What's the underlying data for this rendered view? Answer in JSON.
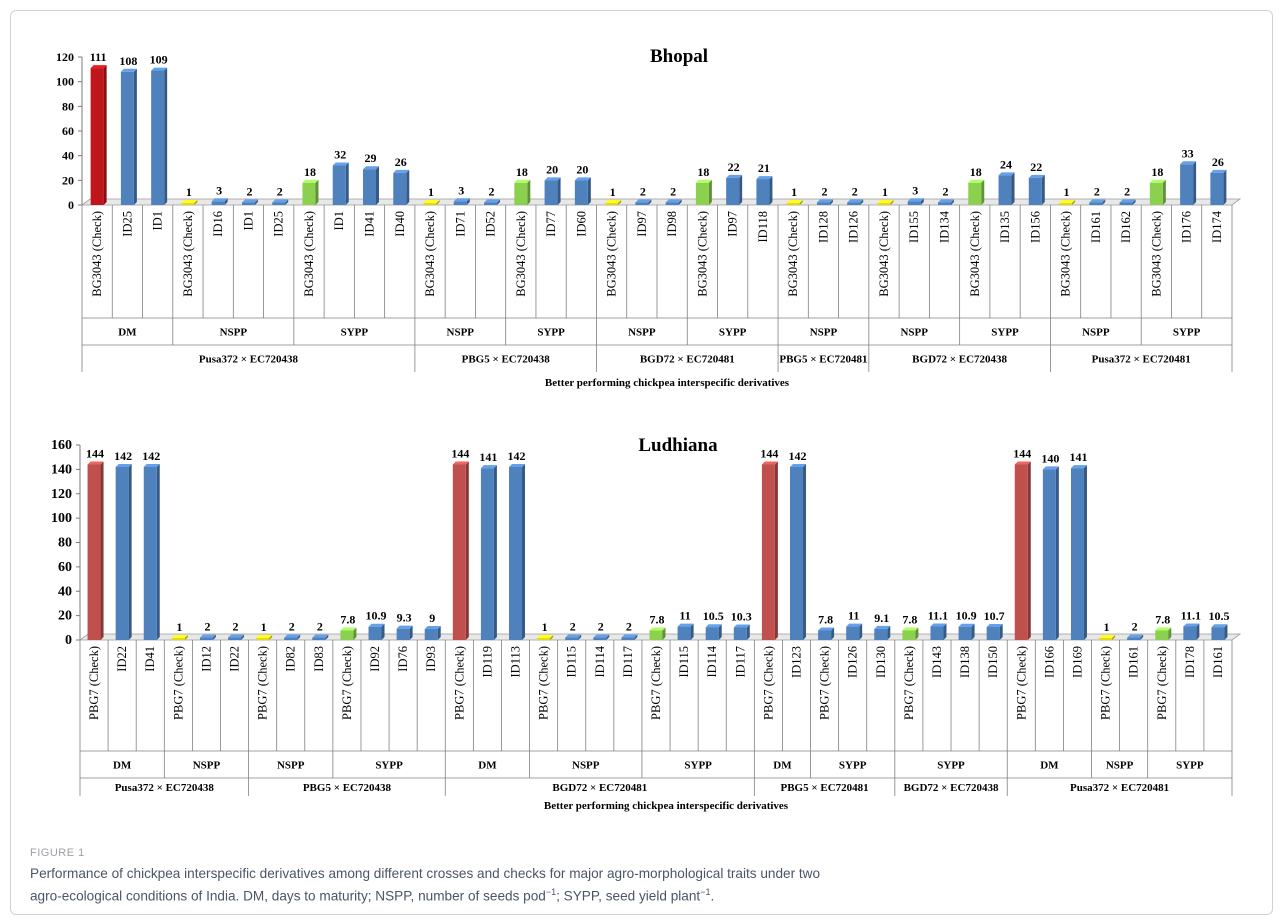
{
  "figure": {
    "label": "FIGURE 1",
    "caption_line1": "Performance of chickpea interspecific derivatives among different crosses and checks for major agro-morphological traits under two",
    "caption_line2": "agro-ecological conditions of India. DM, days to maturity; NSPP, number of seeds pod",
    "caption_sup1": "−1",
    "caption_mid": "; SYPP, seed yield plant",
    "caption_sup2": "−1",
    "caption_end": "."
  },
  "colors": {
    "check_dm": "#c0161b",
    "check_dm_ludhiana": "#c0504d",
    "check_nspp": "#e5d817",
    "check_sypp": "#8cd04f",
    "derivative": "#4f81bd"
  },
  "chart_data": [
    {
      "type": "bar",
      "title": "Bhopal",
      "xlabel": "Better performing chickpea interspecific derivatives",
      "ylabel": "",
      "ylim": [
        0,
        120
      ],
      "yticks": [
        0,
        20,
        40,
        60,
        80,
        100,
        120
      ],
      "grid": false,
      "legend": "none",
      "groups": [
        {
          "cross": "Pusa372 × EC720438",
          "subgroups": [
            {
              "trait": "DM",
              "bars": [
                {
                  "label": "BG3043 (Check)",
                  "value": 111,
                  "kind": "check_dm"
                },
                {
                  "label": "ID25",
                  "value": 108,
                  "kind": "derivative"
                },
                {
                  "label": "ID1",
                  "value": 109,
                  "kind": "derivative"
                }
              ]
            },
            {
              "trait": "NSPP",
              "bars": [
                {
                  "label": "BG3043 (Check)",
                  "value": 1,
                  "kind": "check_nspp"
                },
                {
                  "label": "ID16",
                  "value": 3,
                  "kind": "derivative"
                },
                {
                  "label": "ID1",
                  "value": 2,
                  "kind": "derivative"
                },
                {
                  "label": "ID25",
                  "value": 2,
                  "kind": "derivative"
                }
              ]
            },
            {
              "trait": "SYPP",
              "bars": [
                {
                  "label": "BG3043 (Check)",
                  "value": 18,
                  "kind": "check_sypp"
                },
                {
                  "label": "ID1",
                  "value": 32,
                  "kind": "derivative"
                },
                {
                  "label": "ID41",
                  "value": 29,
                  "kind": "derivative"
                },
                {
                  "label": "ID40",
                  "value": 26,
                  "kind": "derivative"
                }
              ]
            }
          ]
        },
        {
          "cross": "PBG5 × EC720438",
          "subgroups": [
            {
              "trait": "NSPP",
              "bars": [
                {
                  "label": "BG3043 (Check)",
                  "value": 1,
                  "kind": "check_nspp"
                },
                {
                  "label": "ID71",
                  "value": 3,
                  "kind": "derivative"
                },
                {
                  "label": "ID52",
                  "value": 2,
                  "kind": "derivative"
                }
              ]
            },
            {
              "trait": "SYPP",
              "bars": [
                {
                  "label": "BG3043 (Check)",
                  "value": 18,
                  "kind": "check_sypp"
                },
                {
                  "label": "ID77",
                  "value": 20,
                  "kind": "derivative"
                },
                {
                  "label": "ID60",
                  "value": 20,
                  "kind": "derivative"
                }
              ]
            }
          ]
        },
        {
          "cross": "BGD72 × EC720481",
          "subgroups": [
            {
              "trait": "NSPP",
              "bars": [
                {
                  "label": "BG3043 (Check)",
                  "value": 1,
                  "kind": "check_nspp"
                },
                {
                  "label": "ID97",
                  "value": 2,
                  "kind": "derivative"
                },
                {
                  "label": "ID98",
                  "value": 2,
                  "kind": "derivative"
                }
              ]
            },
            {
              "trait": "SYPP",
              "bars": [
                {
                  "label": "BG3043 (Check)",
                  "value": 18,
                  "kind": "check_sypp"
                },
                {
                  "label": "ID97",
                  "value": 22,
                  "kind": "derivative"
                },
                {
                  "label": "ID118",
                  "value": 21,
                  "kind": "derivative"
                }
              ]
            }
          ]
        },
        {
          "cross": "PBG5 × EC720481",
          "subgroups": [
            {
              "trait": "NSPP",
              "bars": [
                {
                  "label": "BG3043 (Check)",
                  "value": 1,
                  "kind": "check_nspp"
                },
                {
                  "label": "ID128",
                  "value": 2,
                  "kind": "derivative"
                },
                {
                  "label": "ID126",
                  "value": 2,
                  "kind": "derivative"
                }
              ]
            }
          ]
        },
        {
          "cross": "BGD72 × EC720438",
          "subgroups": [
            {
              "trait": "NSPP",
              "bars": [
                {
                  "label": "BG3043 (Check)",
                  "value": 1,
                  "kind": "check_nspp"
                },
                {
                  "label": "ID155",
                  "value": 3,
                  "kind": "derivative"
                },
                {
                  "label": "ID134",
                  "value": 2,
                  "kind": "derivative"
                }
              ]
            },
            {
              "trait": "SYPP",
              "bars": [
                {
                  "label": "BG3043 (Check)",
                  "value": 18,
                  "kind": "check_sypp"
                },
                {
                  "label": "ID135",
                  "value": 24,
                  "kind": "derivative"
                },
                {
                  "label": "ID156",
                  "value": 22,
                  "kind": "derivative"
                }
              ]
            }
          ]
        },
        {
          "cross": "Pusa372 × EC720481",
          "subgroups": [
            {
              "trait": "NSPP",
              "bars": [
                {
                  "label": "BG3043 (Check)",
                  "value": 1,
                  "kind": "check_nspp"
                },
                {
                  "label": "ID161",
                  "value": 2,
                  "kind": "derivative"
                },
                {
                  "label": "ID162",
                  "value": 2,
                  "kind": "derivative"
                }
              ]
            },
            {
              "trait": "SYPP",
              "bars": [
                {
                  "label": "BG3043 (Check)",
                  "value": 18,
                  "kind": "check_sypp"
                },
                {
                  "label": "ID176",
                  "value": 33,
                  "kind": "derivative"
                },
                {
                  "label": "ID174",
                  "value": 26,
                  "kind": "derivative"
                }
              ]
            }
          ]
        }
      ]
    },
    {
      "type": "bar",
      "title": "Ludhiana",
      "xlabel": "Better performing chickpea interspecific derivatives",
      "ylabel": "",
      "ylim": [
        0,
        160
      ],
      "yticks": [
        0,
        20,
        40,
        60,
        80,
        100,
        120,
        140,
        160
      ],
      "grid": false,
      "legend": "none",
      "groups": [
        {
          "cross": "Pusa372 × EC720438",
          "subgroups": [
            {
              "trait": "DM",
              "bars": [
                {
                  "label": "PBG7 (Check)",
                  "value": 144,
                  "kind": "check_dm_ludhiana"
                },
                {
                  "label": "ID22",
                  "value": 142,
                  "kind": "derivative"
                },
                {
                  "label": "ID41",
                  "value": 142,
                  "kind": "derivative"
                }
              ]
            },
            {
              "trait": "NSPP",
              "bars": [
                {
                  "label": "PBG7 (Check)",
                  "value": 1,
                  "kind": "check_nspp"
                },
                {
                  "label": "ID12",
                  "value": 2,
                  "kind": "derivative"
                },
                {
                  "label": "ID22",
                  "value": 2,
                  "kind": "derivative"
                }
              ]
            }
          ]
        },
        {
          "cross": "PBG5 × EC720438",
          "subgroups": [
            {
              "trait": "NSPP",
              "bars": [
                {
                  "label": "PBG7 (Check)",
                  "value": 1,
                  "kind": "check_nspp"
                },
                {
                  "label": "ID82",
                  "value": 2,
                  "kind": "derivative"
                },
                {
                  "label": "ID83",
                  "value": 2,
                  "kind": "derivative"
                }
              ]
            },
            {
              "trait": "SYPP",
              "bars": [
                {
                  "label": "PBG7 (Check)",
                  "value": 7.8,
                  "kind": "check_sypp"
                },
                {
                  "label": "ID92",
                  "value": 10.9,
                  "kind": "derivative"
                },
                {
                  "label": "ID76",
                  "value": 9.3,
                  "kind": "derivative"
                },
                {
                  "label": "ID93",
                  "value": 9,
                  "kind": "derivative"
                }
              ]
            }
          ]
        },
        {
          "cross": "BGD72 × EC720481",
          "subgroups": [
            {
              "trait": "DM",
              "bars": [
                {
                  "label": "PBG7 (Check)",
                  "value": 144,
                  "kind": "check_dm_ludhiana"
                },
                {
                  "label": "ID119",
                  "value": 141,
                  "kind": "derivative"
                },
                {
                  "label": "ID113",
                  "value": 142,
                  "kind": "derivative"
                }
              ]
            },
            {
              "trait": "NSPP",
              "bars": [
                {
                  "label": "PBG7 (Check)",
                  "value": 1,
                  "kind": "check_nspp"
                },
                {
                  "label": "ID115",
                  "value": 2,
                  "kind": "derivative"
                },
                {
                  "label": "ID114",
                  "value": 2,
                  "kind": "derivative"
                },
                {
                  "label": "ID117",
                  "value": 2,
                  "kind": "derivative"
                }
              ]
            },
            {
              "trait": "SYPP",
              "bars": [
                {
                  "label": "PBG7 (Check)",
                  "value": 7.8,
                  "kind": "check_sypp"
                },
                {
                  "label": "ID115",
                  "value": 11,
                  "kind": "derivative"
                },
                {
                  "label": "ID114",
                  "value": 10.5,
                  "kind": "derivative"
                },
                {
                  "label": "ID117",
                  "value": 10.3,
                  "kind": "derivative"
                }
              ]
            }
          ]
        },
        {
          "cross": "PBG5 × EC720481",
          "subgroups": [
            {
              "trait": "DM",
              "bars": [
                {
                  "label": "PBG7 (Check)",
                  "value": 144,
                  "kind": "check_dm_ludhiana"
                },
                {
                  "label": "ID123",
                  "value": 142,
                  "kind": "derivative"
                }
              ]
            },
            {
              "trait": "SYPP",
              "bars": [
                {
                  "label": "PBG7 (Check)",
                  "value": 7.8,
                  "kind": "derivative"
                },
                {
                  "label": "ID126",
                  "value": 11,
                  "kind": "derivative"
                },
                {
                  "label": "ID130",
                  "value": 9.1,
                  "kind": "derivative"
                }
              ]
            }
          ]
        },
        {
          "cross": "BGD72 × EC720438",
          "subgroups": [
            {
              "trait": "SYPP",
              "bars": [
                {
                  "label": "PBG7 (Check)",
                  "value": 7.8,
                  "kind": "check_sypp"
                },
                {
                  "label": "ID143",
                  "value": 11.1,
                  "kind": "derivative"
                },
                {
                  "label": "ID138",
                  "value": 10.9,
                  "kind": "derivative"
                },
                {
                  "label": "ID150",
                  "value": 10.7,
                  "kind": "derivative"
                }
              ]
            }
          ]
        },
        {
          "cross": "Pusa372 × EC720481",
          "subgroups": [
            {
              "trait": "DM",
              "bars": [
                {
                  "label": "PBG7 (Check)",
                  "value": 144,
                  "kind": "check_dm_ludhiana"
                },
                {
                  "label": "ID166",
                  "value": 140,
                  "kind": "derivative"
                },
                {
                  "label": "ID169",
                  "value": 141,
                  "kind": "derivative"
                }
              ]
            },
            {
              "trait": "NSPP",
              "bars": [
                {
                  "label": "PBG7 (Check)",
                  "value": 1,
                  "kind": "check_nspp"
                },
                {
                  "label": "ID161",
                  "value": 2,
                  "kind": "derivative"
                }
              ]
            },
            {
              "trait": "SYPP",
              "bars": [
                {
                  "label": "PBG7 (Check)",
                  "value": 7.8,
                  "kind": "check_sypp"
                },
                {
                  "label": "ID178",
                  "value": 11.1,
                  "kind": "derivative"
                },
                {
                  "label": "ID161",
                  "value": 10.5,
                  "kind": "derivative"
                }
              ]
            }
          ]
        }
      ]
    }
  ]
}
